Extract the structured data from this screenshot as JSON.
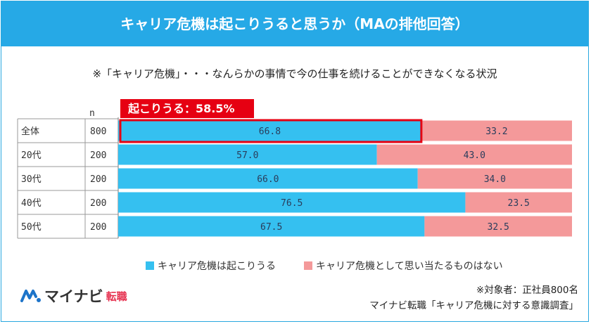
{
  "header": {
    "title": "キャリア危機は起こりうると思うか（MAの排他回答）"
  },
  "note": "※「キャリア危機」・・・なんらかの事情で今の仕事を続けることができなくなる状況",
  "callout": "起こりうる：58.5%",
  "n_header": "n",
  "colors": {
    "blue": "#35c0f0",
    "pink": "#f4999a",
    "header": "#26a9e6",
    "callout": "#e60012"
  },
  "chart_data": {
    "type": "bar",
    "stacked": true,
    "orientation": "horizontal",
    "categories": [
      "全体",
      "20代",
      "30代",
      "40代",
      "50代"
    ],
    "n": [
      "800",
      "200",
      "200",
      "200",
      "200"
    ],
    "series": [
      {
        "name": "キャリア危機は起こりうる",
        "values": [
          66.8,
          57.0,
          66.0,
          76.5,
          67.5
        ]
      },
      {
        "name": "キャリア危機として思い当たるものはない",
        "values": [
          33.2,
          43.0,
          34.0,
          23.5,
          32.5
        ]
      }
    ],
    "value_labels": [
      [
        "66.8",
        "57.0",
        "66.0",
        "76.5",
        "67.5"
      ],
      [
        "33.2",
        "43.0",
        "34.0",
        "23.5",
        "32.5"
      ]
    ],
    "xlim": [
      0,
      100
    ],
    "highlight_category": "全体"
  },
  "legend": {
    "blue_label": "キャリア危機は起こりうる",
    "pink_label": "キャリア危機として思い当たるものはない"
  },
  "brand": {
    "logo_main": "マイナビ",
    "logo_sub": "転職"
  },
  "footer": {
    "line1": "※対象者：正社員800名",
    "line2": "マイナビ転職「キャリア危機に対する意識調査」"
  }
}
